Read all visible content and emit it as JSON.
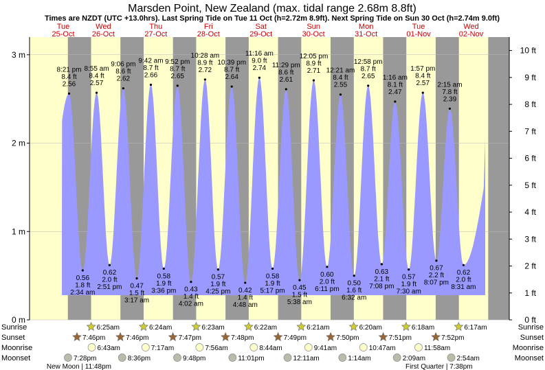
{
  "title": "Marsden Point, New Zealand (max. tidal range 2.68m 8.8ft)",
  "subtitle": "Times are NZDT (UTC +13.0hrs). Last Spring Tide on Tue 11 Oct (h=2.72m 8.9ft). Next Spring Tide on Sun 30 Oct (h=2.74m 9.0ft)",
  "row_labels": {
    "sunrise": "Sunrise",
    "sunset": "Sunset",
    "moonrise": "Moonrise",
    "moonset": "Moonset"
  },
  "colors": {
    "day": "#ffffcc",
    "night": "#999999",
    "tide": "#9999ff",
    "accent_text": "#cc0000",
    "sun_icon": "#cccc33",
    "sunset_icon": "#996633",
    "moonrise_icon": "#ffffcc",
    "moonset_icon": "#bbbbaa"
  },
  "chart_data": {
    "type": "area",
    "left_axis": {
      "unit": "m",
      "ylim": [
        0,
        3.2
      ],
      "ticks": [
        0,
        1,
        2,
        3
      ],
      "tick_labels": [
        "0 m",
        "1 m",
        "2 m",
        "3 m"
      ]
    },
    "right_axis": {
      "unit": "ft",
      "ticks": [
        0,
        1,
        2,
        3,
        4,
        5,
        6,
        7,
        8,
        9,
        10
      ],
      "tick_labels": [
        "0 ft",
        "1 ft",
        "2 ft",
        "3 ft",
        "4 ft",
        "5 ft",
        "6 ft",
        "7 ft",
        "8 ft",
        "9 ft",
        "10 ft"
      ]
    },
    "days": [
      {
        "dow": "Tue",
        "date": "25-Oct"
      },
      {
        "dow": "Wed",
        "date": "26-Oct"
      },
      {
        "dow": "Thu",
        "date": "27-Oct"
      },
      {
        "dow": "Fri",
        "date": "28-Oct"
      },
      {
        "dow": "Sat",
        "date": "29-Oct"
      },
      {
        "dow": "Sun",
        "date": "30-Oct"
      },
      {
        "dow": "Mon",
        "date": "31-Oct"
      },
      {
        "dow": "Tue",
        "date": "01-Nov"
      },
      {
        "dow": "Wed",
        "date": "02-Nov"
      }
    ],
    "high_tides": [
      {
        "day": 0,
        "time": "8:21 pm",
        "ft": "8.4 ft",
        "m": 2.56
      },
      {
        "day": 1,
        "time": "8:55 am",
        "ft": "8.4 ft",
        "m": 2.57
      },
      {
        "day": 1,
        "time": "9:06 pm",
        "ft": "8.6 ft",
        "m": 2.62
      },
      {
        "day": 2,
        "time": "9:42 am",
        "ft": "8.7 ft",
        "m": 2.66
      },
      {
        "day": 2,
        "time": "9:52 pm",
        "ft": "8.7 ft",
        "m": 2.65
      },
      {
        "day": 3,
        "time": "10:28 am",
        "ft": "8.9 ft",
        "m": 2.72
      },
      {
        "day": 3,
        "time": "10:39 pm",
        "ft": "8.7 ft",
        "m": 2.64
      },
      {
        "day": 4,
        "time": "11:16 am",
        "ft": "9.0 ft",
        "m": 2.74
      },
      {
        "day": 4,
        "time": "11:29 pm",
        "ft": "8.6 ft",
        "m": 2.61
      },
      {
        "day": 5,
        "time": "12:05 pm",
        "ft": "8.9 ft",
        "m": 2.71
      },
      {
        "day": 6,
        "time": "12:21 am",
        "ft": "8.4 ft",
        "m": 2.55
      },
      {
        "day": 6,
        "time": "12:58 pm",
        "ft": "8.7 ft",
        "m": 2.65
      },
      {
        "day": 7,
        "time": "1:16 am",
        "ft": "8.1 ft",
        "m": 2.47
      },
      {
        "day": 7,
        "time": "1:57 pm",
        "ft": "8.4 ft",
        "m": 2.57
      },
      {
        "day": 8,
        "time": "2:15 am",
        "ft": "7.8 ft",
        "m": 2.39
      }
    ],
    "low_tides": [
      {
        "day": 1,
        "time": "2:34 am",
        "ft": "1.8 ft",
        "m": 0.56
      },
      {
        "day": 1,
        "time": "2:51 pm",
        "ft": "2.0 ft",
        "m": 0.62
      },
      {
        "day": 2,
        "time": "3:17 am",
        "ft": "1.5 ft",
        "m": 0.47
      },
      {
        "day": 2,
        "time": "3:36 pm",
        "ft": "1.9 ft",
        "m": 0.58
      },
      {
        "day": 3,
        "time": "4:02 am",
        "ft": "1.4 ft",
        "m": 0.43
      },
      {
        "day": 3,
        "time": "4:25 pm",
        "ft": "1.9 ft",
        "m": 0.57
      },
      {
        "day": 4,
        "time": "4:48 am",
        "ft": "1.4 ft",
        "m": 0.42
      },
      {
        "day": 4,
        "time": "5:17 pm",
        "ft": "1.9 ft",
        "m": 0.58
      },
      {
        "day": 5,
        "time": "5:38 am",
        "ft": "1.5 ft",
        "m": 0.45
      },
      {
        "day": 5,
        "time": "6:11 pm",
        "ft": "2.0 ft",
        "m": 0.6
      },
      {
        "day": 6,
        "time": "6:32 am",
        "ft": "1.6 ft",
        "m": 0.5
      },
      {
        "day": 6,
        "time": "7:08 pm",
        "ft": "2.1 ft",
        "m": 0.63
      },
      {
        "day": 7,
        "time": "7:30 am",
        "ft": "1.9 ft",
        "m": 0.57
      },
      {
        "day": 7,
        "time": "8:07 pm",
        "ft": "2.2 ft",
        "m": 0.67
      },
      {
        "day": 8,
        "time": "8:31 am",
        "ft": "2.0 ft",
        "m": 0.62
      }
    ],
    "sunrise": [
      {
        "day": 1,
        "time": "6:25am"
      },
      {
        "day": 2,
        "time": "6:24am"
      },
      {
        "day": 3,
        "time": "6:23am"
      },
      {
        "day": 4,
        "time": "6:22am"
      },
      {
        "day": 5,
        "time": "6:21am"
      },
      {
        "day": 6,
        "time": "6:20am"
      },
      {
        "day": 7,
        "time": "6:18am"
      },
      {
        "day": 8,
        "time": "6:17am"
      }
    ],
    "sunset": [
      {
        "day": 0,
        "time": "7:46pm"
      },
      {
        "day": 1,
        "time": "7:46pm"
      },
      {
        "day": 2,
        "time": "7:47pm"
      },
      {
        "day": 3,
        "time": "7:48pm"
      },
      {
        "day": 4,
        "time": "7:49pm"
      },
      {
        "day": 5,
        "time": "7:50pm"
      },
      {
        "day": 6,
        "time": "7:51pm"
      },
      {
        "day": 7,
        "time": "7:52pm"
      }
    ],
    "moonrise": [
      {
        "day": 1,
        "time": "6:43am"
      },
      {
        "day": 2,
        "time": "7:17am"
      },
      {
        "day": 3,
        "time": "7:56am"
      },
      {
        "day": 4,
        "time": "8:44am"
      },
      {
        "day": 5,
        "time": "9:41am"
      },
      {
        "day": 6,
        "time": "10:47am"
      },
      {
        "day": 7,
        "time": "11:58am"
      }
    ],
    "moonset": [
      {
        "day": 0,
        "time": "7:28pm"
      },
      {
        "day": 1,
        "time": "8:36pm"
      },
      {
        "day": 2,
        "time": "9:48pm"
      },
      {
        "day": 3,
        "time": "11:01pm"
      },
      {
        "day": 5,
        "time": "12:11am"
      },
      {
        "day": 6,
        "time": "1:14am"
      },
      {
        "day": 7,
        "time": "2:09am"
      },
      {
        "day": 8,
        "time": "2:54am"
      }
    ],
    "moon_phases": [
      {
        "label": "New Moon | 11:48pm"
      },
      {
        "label": "First Quarter | 7:38pm"
      }
    ]
  }
}
